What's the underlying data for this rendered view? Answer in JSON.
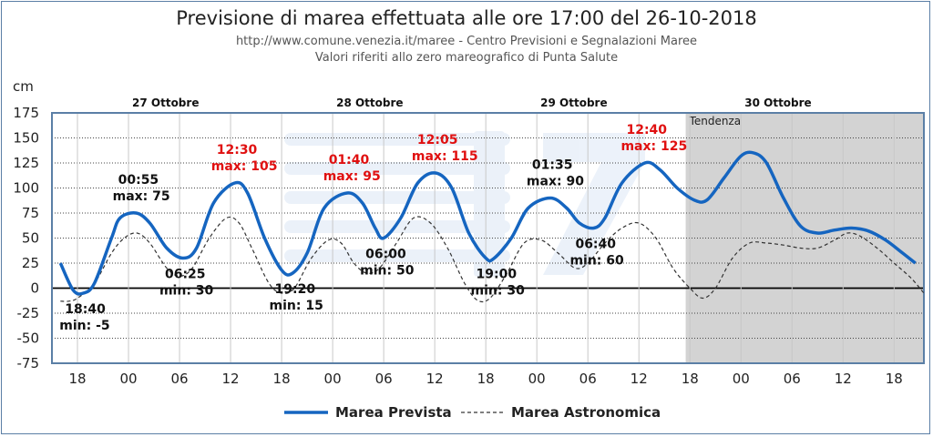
{
  "header": {
    "title": "Previsione di marea effettuata alle ore 17:00 del 26-10-2018",
    "subtitle_1": "http://www.comune.venezia.it/maree - Centro Previsioni e Segnalazioni Maree",
    "subtitle_2": "Valori riferiti allo zero mareografico di Punta Salute"
  },
  "colors": {
    "forecast": "#1565c0",
    "astronomical": "#333333",
    "max_label": "#e01010",
    "min_label": "#111111",
    "trend_region": "#d3d3d3",
    "axis_frame": "#5b7fa6"
  },
  "chart_data": {
    "type": "line",
    "title": "Previsione di marea effettuata alle ore 17:00 del 26-10-2018",
    "ylabel": "cm",
    "ylim": [
      -75,
      175
    ],
    "yticks": [
      175,
      150,
      125,
      100,
      75,
      50,
      25,
      0,
      -25,
      -50,
      -75
    ],
    "x_unit": "hours from 2018-10-26 00:00",
    "xlim": [
      15,
      117.5
    ],
    "xticks": [
      {
        "x": 18,
        "label": "18"
      },
      {
        "x": 24,
        "label": "00"
      },
      {
        "x": 30,
        "label": "06"
      },
      {
        "x": 36,
        "label": "12"
      },
      {
        "x": 42,
        "label": "18"
      },
      {
        "x": 48,
        "label": "00"
      },
      {
        "x": 54,
        "label": "06"
      },
      {
        "x": 60,
        "label": "12"
      },
      {
        "x": 66,
        "label": "18"
      },
      {
        "x": 72,
        "label": "00"
      },
      {
        "x": 78,
        "label": "06"
      },
      {
        "x": 84,
        "label": "12"
      },
      {
        "x": 90,
        "label": "18"
      },
      {
        "x": 96,
        "label": "00"
      },
      {
        "x": 102,
        "label": "06"
      },
      {
        "x": 108,
        "label": "12"
      },
      {
        "x": 114,
        "label": "18"
      }
    ],
    "day_labels": [
      {
        "x": 24,
        "label": "27 Ottobre"
      },
      {
        "x": 48,
        "label": "28 Ottobre"
      },
      {
        "x": 72,
        "label": "29 Ottobre"
      },
      {
        "x": 96,
        "label": "30 Ottobre"
      }
    ],
    "trend_region": {
      "start": 89.5,
      "end": 117.5,
      "label": "Tendenza"
    },
    "grid": true,
    "legend": "bottom",
    "series": [
      {
        "name": "Marea Prevista",
        "style": "solid",
        "points": [
          [
            16,
            25
          ],
          [
            17.5,
            -2
          ],
          [
            18.7,
            -5
          ],
          [
            20,
            5
          ],
          [
            22,
            50
          ],
          [
            23,
            70
          ],
          [
            24.9,
            75
          ],
          [
            26.5,
            65
          ],
          [
            28.5,
            40
          ],
          [
            30.4,
            30
          ],
          [
            32,
            40
          ],
          [
            34,
            85
          ],
          [
            36.5,
            105
          ],
          [
            38,
            95
          ],
          [
            40,
            50
          ],
          [
            42,
            18
          ],
          [
            43.3,
            15
          ],
          [
            45,
            35
          ],
          [
            47,
            80
          ],
          [
            49.7,
            95
          ],
          [
            51.5,
            85
          ],
          [
            53,
            60
          ],
          [
            54,
            50
          ],
          [
            56,
            70
          ],
          [
            58,
            105
          ],
          [
            60.1,
            115
          ],
          [
            62,
            100
          ],
          [
            64,
            55
          ],
          [
            66,
            30
          ],
          [
            67,
            30
          ],
          [
            69,
            50
          ],
          [
            71,
            80
          ],
          [
            73.6,
            90
          ],
          [
            75.5,
            80
          ],
          [
            77,
            65
          ],
          [
            78.7,
            60
          ],
          [
            80,
            70
          ],
          [
            82,
            105
          ],
          [
            84.7,
            125
          ],
          [
            86.5,
            118
          ],
          [
            88.5,
            100
          ],
          [
            90.5,
            88
          ],
          [
            92,
            88
          ],
          [
            94,
            110
          ],
          [
            96,
            132
          ],
          [
            97.5,
            135
          ],
          [
            99,
            125
          ],
          [
            101,
            90
          ],
          [
            103,
            62
          ],
          [
            105,
            55
          ],
          [
            107,
            58
          ],
          [
            109,
            60
          ],
          [
            111,
            57
          ],
          [
            113,
            48
          ],
          [
            115,
            35
          ],
          [
            116.5,
            25
          ]
        ]
      },
      {
        "name": "Marea Astronomica",
        "style": "dashed",
        "points": [
          [
            16,
            -13
          ],
          [
            17,
            -13
          ],
          [
            18,
            -10
          ],
          [
            20,
            5
          ],
          [
            22,
            35
          ],
          [
            23.5,
            50
          ],
          [
            25,
            55
          ],
          [
            26.5,
            45
          ],
          [
            28.5,
            20
          ],
          [
            30,
            12
          ],
          [
            31.5,
            20
          ],
          [
            33.5,
            50
          ],
          [
            35.5,
            70
          ],
          [
            37,
            65
          ],
          [
            38.5,
            40
          ],
          [
            40.5,
            5
          ],
          [
            42,
            -5
          ],
          [
            43.5,
            0
          ],
          [
            45.5,
            30
          ],
          [
            47.5,
            48
          ],
          [
            49,
            45
          ],
          [
            50.5,
            25
          ],
          [
            52,
            15
          ],
          [
            53.5,
            20
          ],
          [
            55.5,
            45
          ],
          [
            57.5,
            70
          ],
          [
            59.5,
            65
          ],
          [
            61.5,
            40
          ],
          [
            63.5,
            5
          ],
          [
            65,
            -12
          ],
          [
            66.5,
            -10
          ],
          [
            68.5,
            15
          ],
          [
            70.5,
            45
          ],
          [
            72.5,
            48
          ],
          [
            74.5,
            35
          ],
          [
            76.5,
            20
          ],
          [
            78,
            25
          ],
          [
            80,
            45
          ],
          [
            82,
            60
          ],
          [
            84,
            65
          ],
          [
            86,
            50
          ],
          [
            88,
            20
          ],
          [
            90,
            0
          ],
          [
            91.5,
            -10
          ],
          [
            93,
            0
          ],
          [
            95,
            30
          ],
          [
            97,
            45
          ],
          [
            99,
            45
          ],
          [
            101,
            43
          ],
          [
            103,
            40
          ],
          [
            105,
            40
          ],
          [
            107,
            48
          ],
          [
            108.5,
            55
          ],
          [
            110,
            52
          ],
          [
            112,
            40
          ],
          [
            114,
            25
          ],
          [
            116,
            10
          ],
          [
            117.5,
            -5
          ]
        ]
      }
    ],
    "annotations": [
      {
        "x": 18.67,
        "y": -5,
        "kind": "min",
        "time": "18:40",
        "value": "min: -5"
      },
      {
        "x": 24.92,
        "y": 75,
        "kind": "max",
        "time": "00:55",
        "value": "max: 75"
      },
      {
        "x": 30.42,
        "y": 30,
        "kind": "min",
        "time": "06:25",
        "value": "min: 30"
      },
      {
        "x": 36.5,
        "y": 105,
        "kind": "max",
        "time": "12:30",
        "value": "max: 105"
      },
      {
        "x": 43.33,
        "y": 15,
        "kind": "min",
        "time": "19:20",
        "value": "min: 15"
      },
      {
        "x": 49.67,
        "y": 95,
        "kind": "max",
        "time": "01:40",
        "value": "max: 95"
      },
      {
        "x": 54,
        "y": 50,
        "kind": "min",
        "time": "06:00",
        "value": "min: 50"
      },
      {
        "x": 60.08,
        "y": 115,
        "kind": "max",
        "time": "12:05",
        "value": "max: 115"
      },
      {
        "x": 67,
        "y": 30,
        "kind": "min",
        "time": "19:00",
        "value": "min: 30"
      },
      {
        "x": 73.58,
        "y": 90,
        "kind": "max",
        "time": "01:35",
        "value": "max: 90"
      },
      {
        "x": 78.67,
        "y": 60,
        "kind": "min",
        "time": "06:40",
        "value": "min: 60"
      },
      {
        "x": 84.67,
        "y": 125,
        "kind": "max",
        "time": "12:40",
        "value": "max: 125"
      }
    ]
  }
}
